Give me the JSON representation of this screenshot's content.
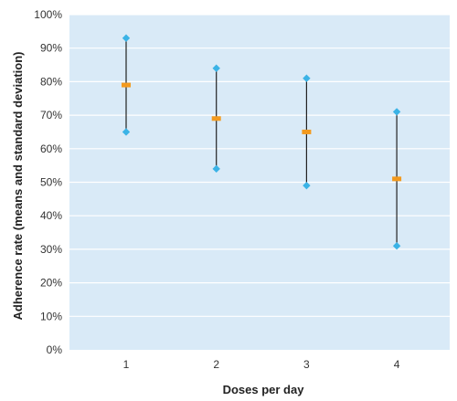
{
  "chart_data": {
    "type": "scatter",
    "subtype": "error-bar",
    "title": "",
    "xlabel": "Doses per day",
    "ylabel": "Adherence rate (means and standard deviation)",
    "categories": [
      "1",
      "2",
      "3",
      "4"
    ],
    "series": [
      {
        "values": [
          93,
          84,
          81,
          71
        ],
        "marker": "diamond",
        "color": "#3bb3e6"
      },
      {
        "values": [
          79,
          69,
          65,
          51
        ],
        "marker": "square",
        "color": "#f39a1e"
      },
      {
        "values": [
          65,
          54,
          49,
          31
        ],
        "marker": "diamond",
        "color": "#3bb3e6"
      }
    ],
    "ylim": [
      0,
      100
    ],
    "yticks": [
      "0%",
      "10%",
      "20%",
      "30%",
      "40%",
      "50%",
      "60%",
      "70%",
      "80%",
      "90%",
      "100%"
    ],
    "grid": true,
    "legend": "none",
    "colors": {
      "plot_background": "#d9eaf7",
      "gridline": "#ffffff",
      "error_line": "#222222"
    }
  }
}
